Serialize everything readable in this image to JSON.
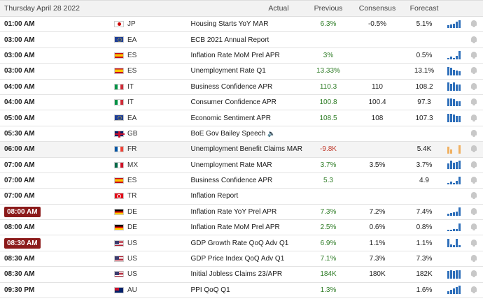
{
  "header": {
    "date": "Thursday April 28 2022",
    "actual": "Actual",
    "previous": "Previous",
    "consensus": "Consensus",
    "forecast": "Forecast"
  },
  "colors": {
    "positive": "#2f7d27",
    "negative": "#c0392b",
    "badge": "#8b1a1a",
    "spark_blue": "#2e6fba",
    "spark_orange": "#f0b060"
  },
  "rows": [
    {
      "time": "01:00 AM",
      "country": "JP",
      "event": "Housing Starts YoY MAR",
      "actual": "",
      "previous": "6.3%",
      "prev_tone": "pos",
      "consensus": "-0.5%",
      "forecast": "5.1%",
      "spark": [
        3,
        4,
        5,
        7,
        9
      ],
      "spark_color": "blue",
      "badge": false,
      "speech": false,
      "highlight": false
    },
    {
      "time": "03:00 AM",
      "country": "EA",
      "event": "ECB 2021 Annual Report",
      "actual": "",
      "previous": "",
      "prev_tone": "neu",
      "consensus": "",
      "forecast": "",
      "spark": [],
      "spark_color": "blue",
      "badge": false,
      "speech": false,
      "highlight": false
    },
    {
      "time": "03:00 AM",
      "country": "ES",
      "event": "Inflation Rate MoM Prel APR",
      "actual": "",
      "previous": "3%",
      "prev_tone": "pos",
      "consensus": "",
      "forecast": "0.5%",
      "spark": [
        2,
        3,
        2,
        4,
        9
      ],
      "spark_color": "blue",
      "badge": false,
      "speech": false,
      "highlight": false
    },
    {
      "time": "03:00 AM",
      "country": "ES",
      "event": "Unemployment Rate Q1",
      "actual": "",
      "previous": "13.33%",
      "prev_tone": "pos",
      "consensus": "",
      "forecast": "13.1%",
      "spark": [
        9,
        8,
        6,
        5,
        4
      ],
      "spark_color": "blue",
      "badge": false,
      "speech": false,
      "highlight": false
    },
    {
      "time": "04:00 AM",
      "country": "IT",
      "event": "Business Confidence APR",
      "actual": "",
      "previous": "110.3",
      "prev_tone": "pos",
      "consensus": "110",
      "forecast": "108.2",
      "spark": [
        9,
        8,
        9,
        7,
        7
      ],
      "spark_color": "blue",
      "badge": false,
      "speech": false,
      "highlight": false
    },
    {
      "time": "04:00 AM",
      "country": "IT",
      "event": "Consumer Confidence APR",
      "actual": "",
      "previous": "100.8",
      "prev_tone": "pos",
      "consensus": "100.4",
      "forecast": "97.3",
      "spark": [
        9,
        9,
        8,
        6,
        6
      ],
      "spark_color": "blue",
      "badge": false,
      "speech": false,
      "highlight": false
    },
    {
      "time": "05:00 AM",
      "country": "EA",
      "event": "Economic Sentiment APR",
      "actual": "",
      "previous": "108.5",
      "prev_tone": "pos",
      "consensus": "108",
      "forecast": "107.3",
      "spark": [
        9,
        9,
        8,
        7,
        7
      ],
      "spark_color": "blue",
      "badge": false,
      "speech": false,
      "highlight": false
    },
    {
      "time": "05:30 AM",
      "country": "GB",
      "event": "BoE Gov Bailey Speech",
      "actual": "",
      "previous": "",
      "prev_tone": "neu",
      "consensus": "",
      "forecast": "",
      "spark": [],
      "spark_color": "blue",
      "badge": false,
      "speech": true,
      "highlight": false
    },
    {
      "time": "06:00 AM",
      "country": "FR",
      "event": "Unemployment Benefit Claims MAR",
      "actual": "",
      "previous": "-9.8K",
      "prev_tone": "neg",
      "consensus": "",
      "forecast": "5.4K",
      "spark": [
        7,
        4,
        0,
        0,
        9
      ],
      "spark_color": "orange",
      "badge": false,
      "speech": false,
      "highlight": true
    },
    {
      "time": "07:00 AM",
      "country": "MX",
      "event": "Unemployment Rate MAR",
      "actual": "",
      "previous": "3.7%",
      "prev_tone": "pos",
      "consensus": "3.5%",
      "forecast": "3.7%",
      "spark": [
        6,
        9,
        7,
        8,
        9
      ],
      "spark_color": "blue",
      "badge": false,
      "speech": false,
      "highlight": false
    },
    {
      "time": "07:00 AM",
      "country": "ES",
      "event": "Business Confidence APR",
      "actual": "",
      "previous": "5.3",
      "prev_tone": "pos",
      "consensus": "",
      "forecast": "4.9",
      "spark": [
        2,
        3,
        2,
        4,
        9
      ],
      "spark_color": "blue",
      "badge": false,
      "speech": false,
      "highlight": false
    },
    {
      "time": "07:00 AM",
      "country": "TR",
      "event": "Inflation Report",
      "actual": "",
      "previous": "",
      "prev_tone": "neu",
      "consensus": "",
      "forecast": "",
      "spark": [],
      "spark_color": "blue",
      "badge": false,
      "speech": false,
      "highlight": false
    },
    {
      "time": "08:00 AM",
      "country": "DE",
      "event": "Inflation Rate YoY Prel APR",
      "actual": "",
      "previous": "7.3%",
      "prev_tone": "pos",
      "consensus": "7.2%",
      "forecast": "7.4%",
      "spark": [
        2,
        3,
        4,
        5,
        9
      ],
      "spark_color": "blue",
      "badge": true,
      "speech": false,
      "highlight": false
    },
    {
      "time": "08:00 AM",
      "country": "DE",
      "event": "Inflation Rate MoM Prel APR",
      "actual": "",
      "previous": "2.5%",
      "prev_tone": "pos",
      "consensus": "0.6%",
      "forecast": "0.8%",
      "spark": [
        2,
        2,
        3,
        3,
        9
      ],
      "spark_color": "blue",
      "badge": false,
      "speech": false,
      "highlight": false
    },
    {
      "time": "08:30 AM",
      "country": "US",
      "event": "GDP Growth Rate QoQ Adv Q1",
      "actual": "",
      "previous": "6.9%",
      "prev_tone": "pos",
      "consensus": "1.1%",
      "forecast": "1.1%",
      "spark": [
        9,
        3,
        2,
        9,
        2
      ],
      "spark_color": "blue",
      "badge": true,
      "speech": false,
      "highlight": false
    },
    {
      "time": "08:30 AM",
      "country": "US",
      "event": "GDP Price Index QoQ Adv Q1",
      "actual": "",
      "previous": "7.1%",
      "prev_tone": "pos",
      "consensus": "7.3%",
      "forecast": "7.3%",
      "spark": [],
      "spark_color": "blue",
      "badge": false,
      "speech": false,
      "highlight": false
    },
    {
      "time": "08:30 AM",
      "country": "US",
      "event": "Initial Jobless Claims 23/APR",
      "actual": "",
      "previous": "184K",
      "prev_tone": "pos",
      "consensus": "180K",
      "forecast": "182K",
      "spark": [
        8,
        9,
        8,
        9,
        9
      ],
      "spark_color": "blue",
      "badge": false,
      "speech": false,
      "highlight": false
    },
    {
      "time": "09:30 PM",
      "country": "AU",
      "event": "PPI QoQ Q1",
      "actual": "",
      "previous": "1.3%",
      "prev_tone": "pos",
      "consensus": "",
      "forecast": "1.6%",
      "spark": [
        3,
        5,
        6,
        8,
        9
      ],
      "spark_color": "blue",
      "badge": false,
      "speech": false,
      "highlight": false
    }
  ]
}
